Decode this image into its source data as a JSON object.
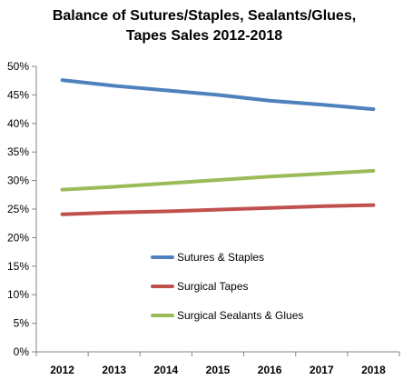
{
  "chart_data": {
    "type": "line",
    "title_lines": [
      "Balance of Sutures/Staples, Sealants/Glues,",
      "Tapes Sales 2012-2018"
    ],
    "x": [
      "2012",
      "2013",
      "2014",
      "2015",
      "2016",
      "2017",
      "2018"
    ],
    "ylim": [
      0,
      50
    ],
    "y_ticks": [
      "0%",
      "5%",
      "10%",
      "15%",
      "20%",
      "25%",
      "30%",
      "35%",
      "40%",
      "45%",
      "50%"
    ],
    "y_tick_values": [
      0,
      5,
      10,
      15,
      20,
      25,
      30,
      35,
      40,
      45,
      50
    ],
    "grid": false,
    "legend_position": "center",
    "series": [
      {
        "name": "Sutures & Staples",
        "color": "#4f81bd",
        "values": [
          47.6,
          46.6,
          45.8,
          45.0,
          44.0,
          43.3,
          42.5
        ]
      },
      {
        "name": "Surgical Tapes",
        "color": "#c0504d",
        "values": [
          24.1,
          24.4,
          24.6,
          24.9,
          25.2,
          25.5,
          25.7
        ]
      },
      {
        "name": "Surgical Sealants & Glues",
        "color": "#9bbb59",
        "values": [
          28.4,
          28.9,
          29.5,
          30.1,
          30.7,
          31.2,
          31.7
        ]
      }
    ]
  }
}
